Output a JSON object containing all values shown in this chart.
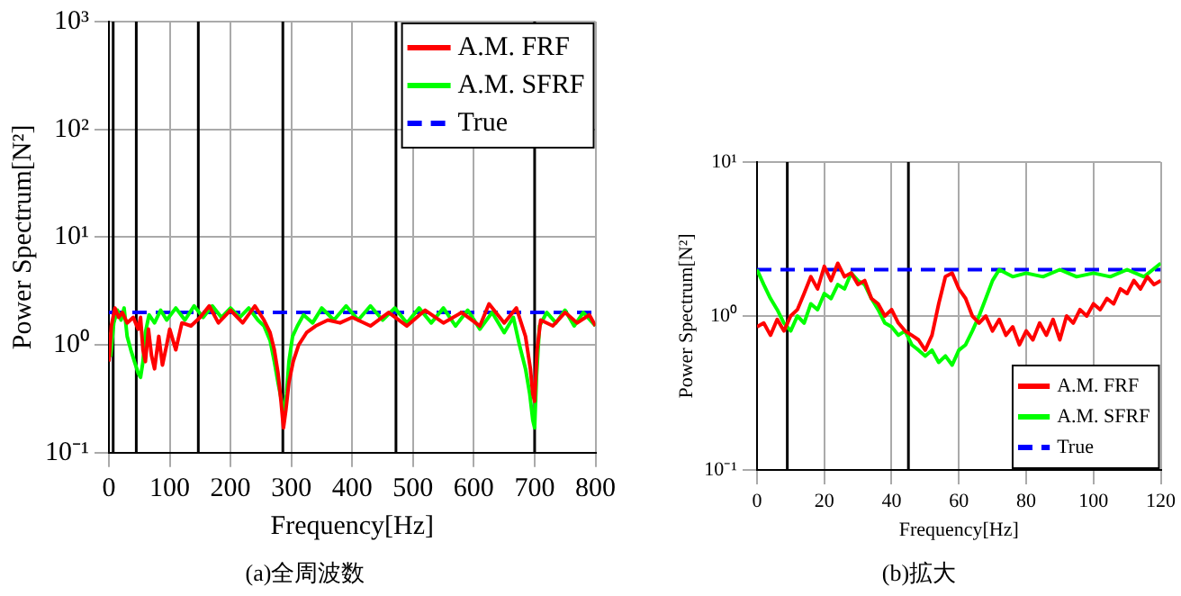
{
  "chart_data": [
    {
      "type": "line",
      "title": "(a)全周波数",
      "xlabel": "Frequency[Hz]",
      "ylabel": "Power Spectrum[N²]",
      "log": "y",
      "grid": true,
      "legend": "top right",
      "marker": "none",
      "xlim": [
        0,
        800
      ],
      "xticks": [
        0,
        100,
        200,
        300,
        400,
        500,
        600,
        700,
        800
      ],
      "ylim": [
        0.1,
        1000
      ],
      "yticks": [
        {
          "value": 0.1,
          "label": "10⁻¹"
        },
        {
          "value": 1,
          "label": "10⁰"
        },
        {
          "value": 10,
          "label": "10¹"
        },
        {
          "value": 100,
          "label": "10²"
        },
        {
          "value": 1000,
          "label": "10³"
        }
      ],
      "ref_lines": [
        {
          "axis": "x",
          "value": 7,
          "color": "#000000"
        },
        {
          "axis": "x",
          "value": 45,
          "color": "#000000"
        },
        {
          "axis": "x",
          "value": 147,
          "color": "#000000"
        },
        {
          "axis": "x",
          "value": 286,
          "color": "#000000"
        },
        {
          "axis": "x",
          "value": 472,
          "color": "#000000"
        },
        {
          "axis": "x",
          "value": 700,
          "color": "#000000"
        }
      ],
      "series": [
        {
          "name": "A.M. FRF",
          "color": "#ff0000",
          "line_style": "solid",
          "x": [
            0,
            4,
            10,
            16,
            22,
            30,
            40,
            48,
            52,
            56,
            60,
            65,
            70,
            75,
            82,
            88,
            95,
            100,
            110,
            120,
            135,
            150,
            165,
            180,
            200,
            220,
            240,
            255,
            265,
            272,
            278,
            283,
            287,
            291,
            296,
            303,
            312,
            325,
            340,
            360,
            380,
            400,
            430,
            460,
            490,
            520,
            550,
            580,
            610,
            625,
            650,
            670,
            685,
            693,
            697,
            700,
            704,
            710,
            730,
            750,
            770,
            790,
            800
          ],
          "values": [
            0.7,
            1.5,
            2.2,
            1.8,
            2.0,
            1.6,
            1.8,
            1.4,
            1.8,
            0.9,
            0.7,
            1.4,
            0.8,
            0.6,
            1.2,
            0.65,
            1.0,
            1.4,
            0.9,
            1.6,
            1.5,
            1.8,
            2.3,
            1.6,
            2.1,
            1.6,
            2.3,
            1.7,
            1.3,
            0.9,
            0.55,
            0.3,
            0.17,
            0.25,
            0.45,
            0.7,
            1.0,
            1.3,
            1.5,
            1.7,
            1.6,
            1.8,
            1.5,
            2.0,
            1.5,
            2.1,
            1.6,
            2.0,
            1.5,
            2.4,
            1.6,
            2.2,
            1.2,
            0.6,
            0.35,
            0.3,
            0.9,
            1.7,
            1.5,
            2.0,
            1.6,
            1.9,
            1.5
          ]
        },
        {
          "name": "A.M. SFRF",
          "color": "#00ff00",
          "line_style": "solid",
          "x": [
            0,
            3,
            8,
            14,
            20,
            25,
            30,
            36,
            42,
            48,
            52,
            56,
            60,
            66,
            75,
            85,
            95,
            110,
            125,
            140,
            155,
            170,
            185,
            200,
            215,
            230,
            245,
            255,
            265,
            272,
            278,
            284,
            288,
            292,
            296,
            302,
            310,
            320,
            335,
            350,
            370,
            390,
            410,
            430,
            450,
            470,
            490,
            510,
            530,
            550,
            570,
            590,
            610,
            630,
            650,
            665,
            675,
            685,
            692,
            697,
            700,
            703,
            708,
            720,
            735,
            750,
            765,
            780,
            800
          ],
          "values": [
            1.3,
            0.8,
            1.6,
            2.1,
            1.7,
            2.2,
            1.2,
            0.9,
            0.7,
            0.55,
            0.5,
            0.7,
            1.3,
            1.9,
            1.6,
            2.1,
            1.7,
            2.2,
            1.7,
            2.3,
            1.8,
            2.3,
            1.8,
            2.2,
            1.8,
            2.2,
            1.7,
            1.5,
            1.1,
            0.7,
            0.45,
            0.3,
            0.22,
            0.35,
            0.7,
            1.2,
            1.5,
            1.9,
            1.6,
            2.2,
            1.7,
            2.3,
            1.7,
            2.3,
            1.7,
            2.2,
            1.6,
            2.2,
            1.6,
            2.2,
            1.5,
            2.1,
            1.4,
            2.0,
            1.3,
            1.8,
            1.0,
            0.6,
            0.35,
            0.2,
            0.17,
            0.5,
            1.5,
            2.0,
            1.6,
            2.1,
            1.5,
            2.0,
            1.5
          ]
        },
        {
          "name": "True",
          "color": "#0000ff",
          "line_style": "dashed",
          "x": [
            0,
            800
          ],
          "values": [
            2,
            2
          ]
        }
      ]
    },
    {
      "type": "line",
      "title": "(b)拡大",
      "xlabel": "Frequency[Hz]",
      "ylabel": "Power Spectrum[N²]",
      "log": "y",
      "grid": true,
      "legend": "bottom right",
      "marker": "none",
      "xlim": [
        0,
        120
      ],
      "xticks": [
        0,
        20,
        40,
        60,
        80,
        100,
        120
      ],
      "ylim": [
        0.1,
        10
      ],
      "yticks": [
        {
          "value": 0.1,
          "label": "10⁻¹"
        },
        {
          "value": 1,
          "label": "10⁰"
        },
        {
          "value": 10,
          "label": "10¹"
        }
      ],
      "ref_lines": [
        {
          "axis": "x",
          "value": 9,
          "color": "#000000"
        },
        {
          "axis": "x",
          "value": 45,
          "color": "#000000"
        }
      ],
      "series": [
        {
          "name": "A.M. FRF",
          "color": "#ff0000",
          "line_style": "solid",
          "x": [
            0,
            2,
            4,
            6,
            8,
            10,
            12,
            14,
            16,
            18,
            20,
            22,
            24,
            26,
            28,
            30,
            32,
            34,
            36,
            38,
            40,
            42,
            44,
            46,
            48,
            50,
            52,
            54,
            56,
            58,
            60,
            62,
            64,
            66,
            68,
            70,
            72,
            74,
            76,
            78,
            80,
            82,
            84,
            86,
            88,
            90,
            92,
            94,
            96,
            98,
            100,
            102,
            104,
            106,
            108,
            110,
            112,
            114,
            116,
            118,
            120
          ],
          "values": [
            0.85,
            0.9,
            0.75,
            0.95,
            0.8,
            1.0,
            1.1,
            1.4,
            1.8,
            1.5,
            2.1,
            1.7,
            2.2,
            1.8,
            1.9,
            1.6,
            1.7,
            1.3,
            1.2,
            1.0,
            1.1,
            0.9,
            0.8,
            0.75,
            0.7,
            0.6,
            0.75,
            1.2,
            1.8,
            1.9,
            1.5,
            1.3,
            1.0,
            0.9,
            1.0,
            0.8,
            0.95,
            0.75,
            0.85,
            0.65,
            0.8,
            0.7,
            0.9,
            0.75,
            0.95,
            0.7,
            1.0,
            0.9,
            1.1,
            1.0,
            1.2,
            1.1,
            1.3,
            1.2,
            1.5,
            1.4,
            1.7,
            1.5,
            1.8,
            1.6,
            1.7
          ]
        },
        {
          "name": "A.M. SFRF",
          "color": "#00ff00",
          "line_style": "solid",
          "x": [
            0,
            2,
            4,
            6,
            8,
            10,
            12,
            14,
            16,
            18,
            20,
            22,
            24,
            26,
            28,
            30,
            32,
            34,
            36,
            38,
            40,
            42,
            44,
            46,
            48,
            50,
            52,
            54,
            56,
            58,
            60,
            62,
            64,
            66,
            68,
            70,
            72,
            76,
            80,
            85,
            90,
            95,
            100,
            105,
            110,
            115,
            120
          ],
          "values": [
            2.0,
            1.6,
            1.3,
            1.1,
            0.9,
            0.8,
            1.0,
            0.9,
            1.2,
            1.1,
            1.4,
            1.3,
            1.6,
            1.5,
            1.9,
            1.7,
            1.6,
            1.3,
            1.1,
            0.9,
            0.85,
            0.75,
            0.8,
            0.65,
            0.6,
            0.55,
            0.6,
            0.5,
            0.55,
            0.48,
            0.6,
            0.65,
            0.8,
            1.0,
            1.3,
            1.7,
            2.0,
            1.8,
            1.9,
            1.8,
            2.0,
            1.8,
            1.9,
            1.8,
            2.0,
            1.8,
            2.2
          ]
        },
        {
          "name": "True",
          "color": "#0000ff",
          "line_style": "dashed",
          "x": [
            0,
            120
          ],
          "values": [
            2,
            2
          ]
        }
      ]
    }
  ]
}
